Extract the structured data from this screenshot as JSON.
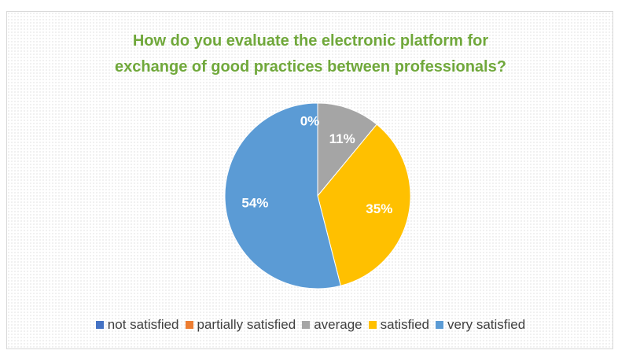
{
  "chart_data": {
    "type": "pie",
    "title_lines": [
      "How do you evaluate the electronic platform for",
      "exchange of good practices between professionals?"
    ],
    "slices": [
      {
        "name": "not satisfied",
        "label": "0%",
        "value": 0,
        "color": "#4472c4"
      },
      {
        "name": "partially satisfied",
        "label": "",
        "value": 0,
        "color": "#ed7d31"
      },
      {
        "name": "average",
        "label": "11%",
        "value": 11,
        "color": "#a5a5a5"
      },
      {
        "name": "satisfied",
        "label": "35%",
        "value": 35,
        "color": "#ffc000"
      },
      {
        "name": "very satisfied",
        "label": "54%",
        "value": 54,
        "color": "#5b9bd5"
      }
    ],
    "legend_position": "bottom"
  }
}
